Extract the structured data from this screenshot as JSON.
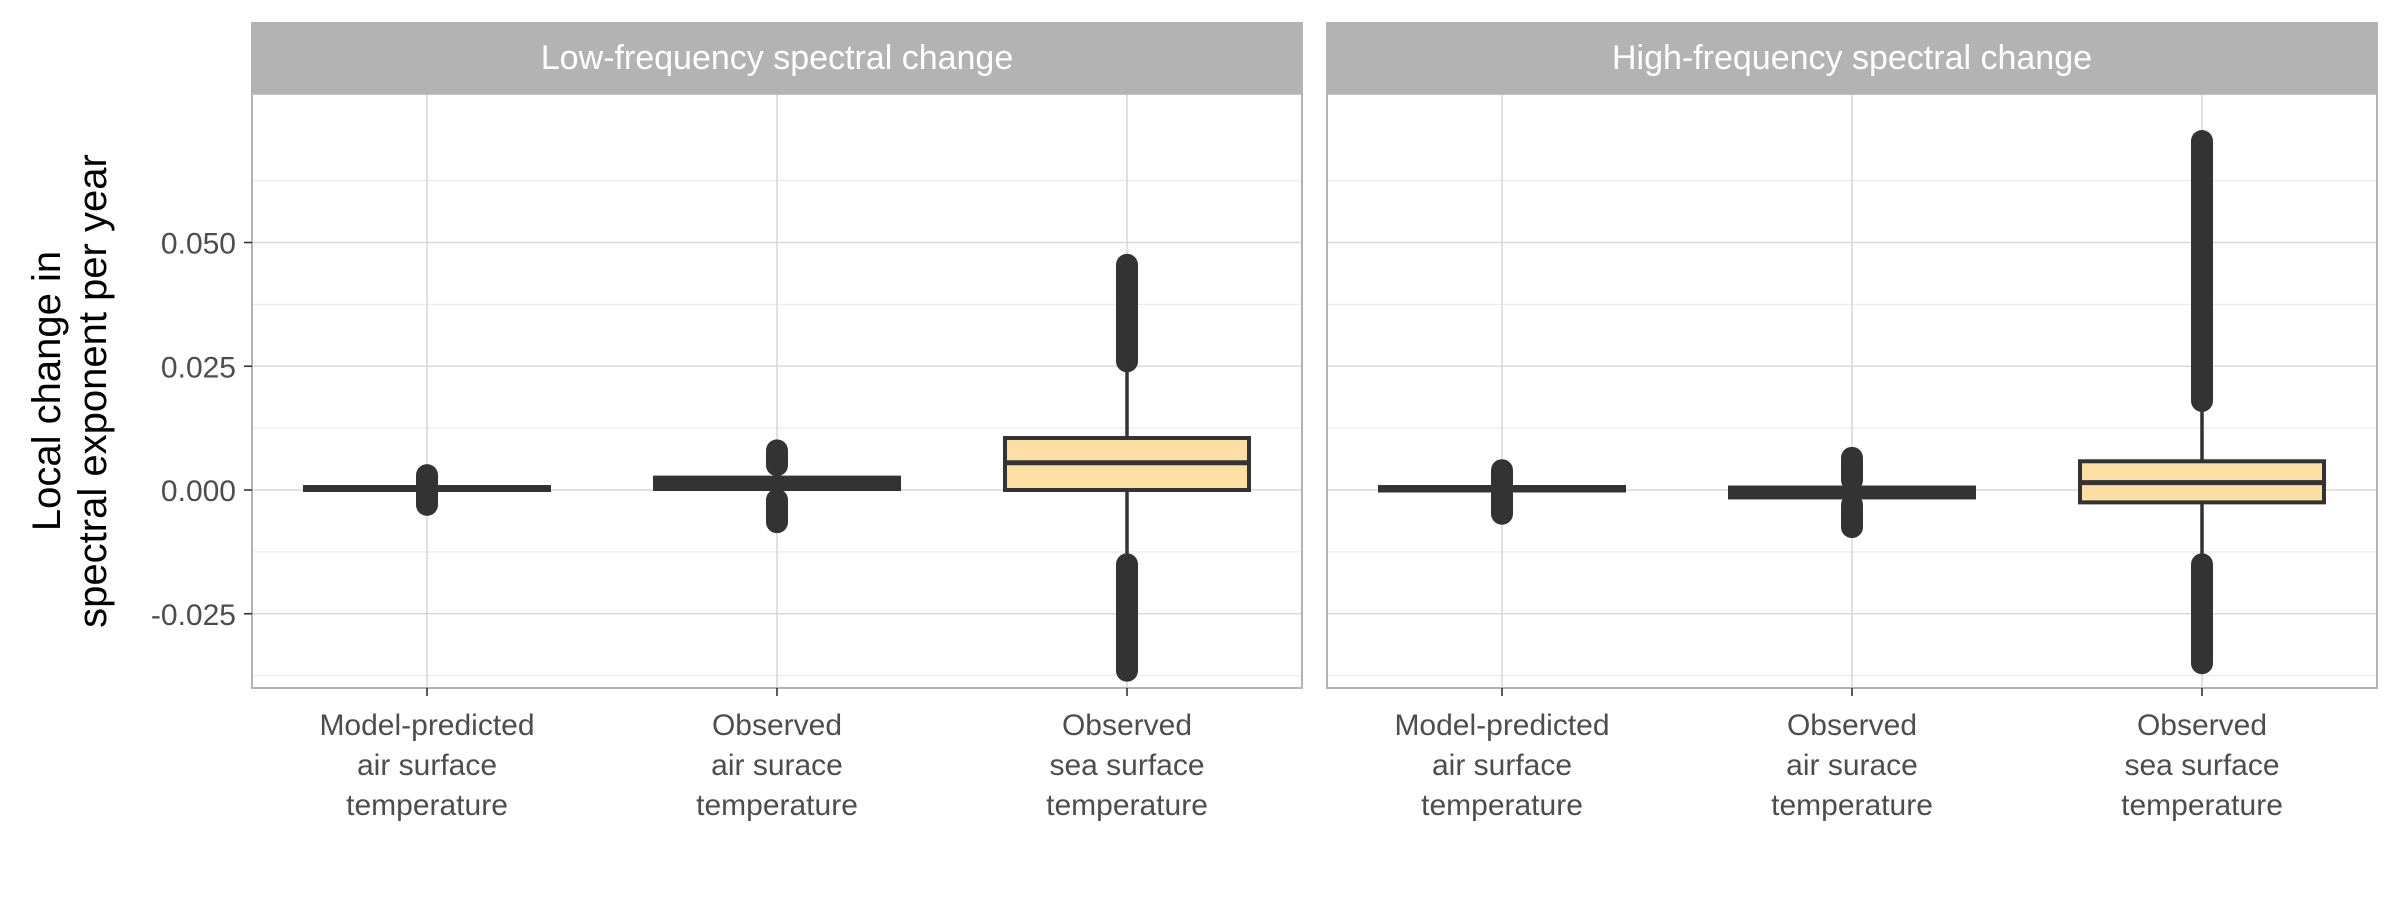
{
  "chart_data": {
    "type": "box",
    "ylabel_lines": [
      "Local change in",
      "spectral exponent per year"
    ],
    "ylim": [
      -0.04,
      0.08
    ],
    "y_ticks": [
      -0.025,
      0.0,
      0.025,
      0.05
    ],
    "y_tick_labels": [
      "-0.025",
      "0.000",
      "0.025",
      "0.050"
    ],
    "categories": [
      {
        "lines": [
          "Model-predicted",
          "air surface",
          "temperature"
        ]
      },
      {
        "lines": [
          "Observed",
          "air surace",
          "temperature"
        ]
      },
      {
        "lines": [
          "Observed",
          "sea surface",
          "temperature"
        ]
      }
    ],
    "panels": [
      {
        "title": "Low-frequency spectral change",
        "boxes": [
          {
            "q1": 0.0,
            "median": 0.0003,
            "q3": 0.0006,
            "whisker_low": -0.0003,
            "whisker_high": 0.0009,
            "outliers_low": [
              -0.003,
              -0.0003
            ],
            "outliers_high": [
              0.0009,
              0.003
            ],
            "fill": "#333333"
          },
          {
            "q1": 0.0002,
            "median": 0.0012,
            "q3": 0.0025,
            "whisker_low": -0.002,
            "whisker_high": 0.005,
            "outliers_low": [
              -0.0065,
              -0.002
            ],
            "outliers_high": [
              0.005,
              0.008
            ],
            "fill": "#333333"
          },
          {
            "q1": 0.0,
            "median": 0.0055,
            "q3": 0.0105,
            "whisker_low": -0.015,
            "whisker_high": 0.026,
            "outliers_low": [
              -0.0365,
              -0.015
            ],
            "outliers_high": [
              0.026,
              0.0455
            ],
            "fill": "#fddfa3"
          }
        ]
      },
      {
        "title": "High-frequency spectral change",
        "boxes": [
          {
            "q1": -0.0001,
            "median": 0.0002,
            "q3": 0.0006,
            "whisker_low": -0.0008,
            "whisker_high": 0.0012,
            "outliers_low": [
              -0.0048,
              -0.0008
            ],
            "outliers_high": [
              0.0012,
              0.004
            ],
            "fill": "#333333"
          },
          {
            "q1": -0.0015,
            "median": -0.0005,
            "q3": 0.0005,
            "whisker_low": -0.003,
            "whisker_high": 0.002,
            "outliers_low": [
              -0.0075,
              -0.003
            ],
            "outliers_high": [
              0.002,
              0.0065
            ],
            "fill": "#333333"
          },
          {
            "q1": -0.0025,
            "median": 0.0015,
            "q3": 0.0058,
            "whisker_low": -0.015,
            "whisker_high": 0.018,
            "outliers_low": [
              -0.035,
              -0.015
            ],
            "outliers_high": [
              0.018,
              0.0705
            ],
            "fill": "#fddfa3"
          }
        ]
      }
    ],
    "grid": true,
    "legend": "none",
    "colors": {
      "strip_background": "#b3b3b3",
      "panel_border": "#b3b3b3",
      "grid_major": "#d9d9d9",
      "grid_minor": "#ebebeb",
      "box_outline": "#333333",
      "sst_fill": "#fddfa3"
    }
  }
}
